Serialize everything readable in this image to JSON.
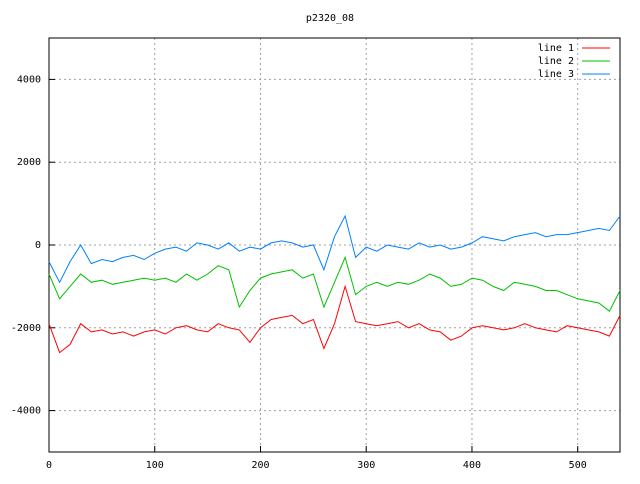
{
  "chart_data": {
    "type": "line",
    "title": "p2320_08",
    "x": [
      0,
      10,
      20,
      30,
      40,
      50,
      60,
      70,
      80,
      90,
      100,
      110,
      120,
      130,
      140,
      150,
      160,
      170,
      180,
      190,
      200,
      210,
      220,
      230,
      240,
      250,
      260,
      270,
      280,
      290,
      300,
      310,
      320,
      330,
      340,
      350,
      360,
      370,
      380,
      390,
      400,
      410,
      420,
      430,
      440,
      450,
      460,
      470,
      480,
      490,
      500,
      510,
      520,
      530,
      540
    ],
    "series": [
      {
        "name": "line 1",
        "color": "#ff0000",
        "values": [
          -1900,
          -2600,
          -2400,
          -1900,
          -2100,
          -2050,
          -2150,
          -2100,
          -2200,
          -2100,
          -2050,
          -2150,
          -2000,
          -1950,
          -2050,
          -2100,
          -1900,
          -2000,
          -2050,
          -2350,
          -2000,
          -1800,
          -1750,
          -1700,
          -1900,
          -1800,
          -2500,
          -1900,
          -1000,
          -1850,
          -1900,
          -1950,
          -1900,
          -1850,
          -2000,
          -1900,
          -2050,
          -2100,
          -2300,
          -2200,
          -2000,
          -1950,
          -2000,
          -2050,
          -2000,
          -1900,
          -2000,
          -2050,
          -2100,
          -1950,
          -2000,
          -2050,
          -2100,
          -2200,
          -1700
        ]
      },
      {
        "name": "line 2",
        "color": "#00c000",
        "values": [
          -700,
          -1300,
          -1000,
          -700,
          -900,
          -850,
          -950,
          -900,
          -850,
          -800,
          -850,
          -800,
          -900,
          -700,
          -850,
          -700,
          -500,
          -600,
          -1500,
          -1100,
          -800,
          -700,
          -650,
          -600,
          -800,
          -700,
          -1500,
          -900,
          -300,
          -1200,
          -1000,
          -900,
          -1000,
          -900,
          -950,
          -850,
          -700,
          -800,
          -1000,
          -950,
          -800,
          -850,
          -1000,
          -1100,
          -900,
          -950,
          -1000,
          -1100,
          -1100,
          -1200,
          -1300,
          -1350,
          -1400,
          -1600,
          -1100
        ]
      },
      {
        "name": "line 3",
        "color": "#0080ff",
        "values": [
          -400,
          -900,
          -400,
          0,
          -450,
          -350,
          -400,
          -300,
          -250,
          -350,
          -200,
          -100,
          -50,
          -150,
          50,
          0,
          -100,
          50,
          -150,
          -50,
          -100,
          50,
          100,
          50,
          -50,
          0,
          -600,
          200,
          700,
          -300,
          -50,
          -150,
          0,
          -50,
          -100,
          50,
          -50,
          0,
          -100,
          -50,
          50,
          200,
          150,
          100,
          200,
          250,
          300,
          200,
          250,
          250,
          300,
          350,
          400,
          350,
          700
        ]
      }
    ],
    "xlim": [
      0,
      540
    ],
    "ylim": [
      -5000,
      5000
    ],
    "xticks": [
      0,
      100,
      200,
      300,
      400,
      500
    ],
    "yticks": [
      -4000,
      -2000,
      0,
      2000,
      4000
    ],
    "grid": true,
    "legend": "top-right"
  }
}
